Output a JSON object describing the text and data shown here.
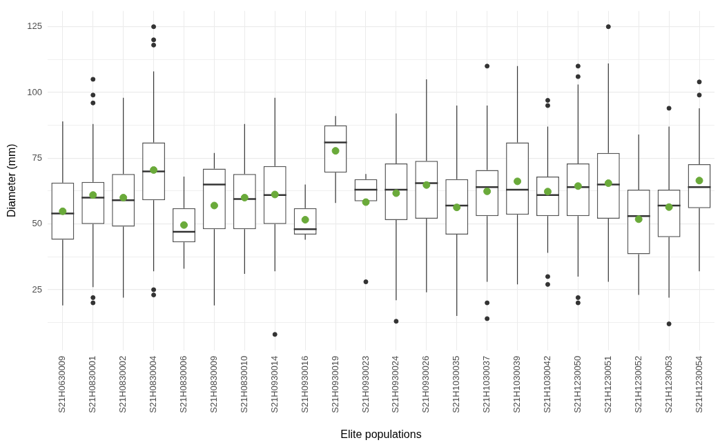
{
  "chart_data": {
    "type": "box",
    "xlabel": "Elite populations",
    "ylabel": "Diameter (mm)",
    "categories": [
      "S21H0630009",
      "S21H0830001",
      "S21H0830002",
      "S21H0830004",
      "S21H0830006",
      "S21H0830009",
      "S21H0830010",
      "S21H0930014",
      "S21H0930016",
      "S21H0930019",
      "S21H0930023",
      "S21H0930024",
      "S21H0930026",
      "S21H1030035",
      "S21H1030037",
      "S21H1030039",
      "S21H1030042",
      "S21H1230050",
      "S21H1230051",
      "S21H1230052",
      "S21H1230053",
      "S21H1230054"
    ],
    "boxes": [
      {
        "low": 19,
        "q1": 44,
        "median": 54,
        "q3": 65.7,
        "high": 89,
        "mean": 54.8
      },
      {
        "low": 26,
        "q1": 50,
        "median": 60,
        "q3": 66,
        "high": 88,
        "mean": 61,
        "outliers": [
          105,
          99,
          96,
          22,
          20
        ]
      },
      {
        "low": 22,
        "q1": 49,
        "median": 59,
        "q3": 69,
        "high": 98,
        "mean": 60
      },
      {
        "low": 32,
        "q1": 59,
        "median": 70,
        "q3": 81,
        "high": 108,
        "mean": 70.5,
        "outliers": [
          125,
          120,
          118,
          25,
          23
        ]
      },
      {
        "low": 33,
        "q1": 43,
        "median": 47,
        "q3": 56,
        "high": 68,
        "mean": 49.6
      },
      {
        "low": 19,
        "q1": 48,
        "median": 65,
        "q3": 71,
        "high": 77,
        "mean": 57
      },
      {
        "low": 31,
        "q1": 48,
        "median": 59.5,
        "q3": 69,
        "high": 88,
        "mean": 60
      },
      {
        "low": 32,
        "q1": 50,
        "median": 61,
        "q3": 72,
        "high": 98,
        "mean": 61.2,
        "outliers": [
          8
        ]
      },
      {
        "low": 44,
        "q1": 46,
        "median": 48,
        "q3": 56,
        "high": 65,
        "mean": 51.6
      },
      {
        "low": 58,
        "q1": 69.5,
        "median": 81,
        "q3": 87.5,
        "high": 91,
        "mean": 77.8
      },
      {
        "low": 58.6,
        "q1": 58.6,
        "median": 63,
        "q3": 67,
        "high": 69,
        "mean": 58.3,
        "outliers": [
          28
        ]
      },
      {
        "low": 21,
        "q1": 51.5,
        "median": 63,
        "q3": 73,
        "high": 92,
        "mean": 61.7,
        "outliers": [
          13
        ]
      },
      {
        "low": 24,
        "q1": 52,
        "median": 65.5,
        "q3": 74,
        "high": 105,
        "mean": 64.8
      },
      {
        "low": 15,
        "q1": 46,
        "median": 57,
        "q3": 67,
        "high": 95,
        "mean": 56.3
      },
      {
        "low": 28,
        "q1": 53,
        "median": 64,
        "q3": 70.5,
        "high": 95,
        "mean": 62.4,
        "outliers": [
          110,
          20,
          14
        ]
      },
      {
        "low": 27,
        "q1": 53.5,
        "median": 63,
        "q3": 81,
        "high": 110,
        "mean": 66.2
      },
      {
        "low": 39,
        "q1": 53,
        "median": 61,
        "q3": 68,
        "high": 87,
        "mean": 62.3,
        "outliers": [
          97,
          95,
          30,
          27
        ]
      },
      {
        "low": 30,
        "q1": 53,
        "median": 64,
        "q3": 73,
        "high": 103,
        "mean": 64.4,
        "outliers": [
          110,
          106,
          22,
          20
        ]
      },
      {
        "low": 28,
        "q1": 52,
        "median": 65,
        "q3": 77,
        "high": 111,
        "mean": 65.5,
        "outliers": [
          125
        ]
      },
      {
        "low": 23,
        "q1": 38.5,
        "median": 53,
        "q3": 63,
        "high": 84,
        "mean": 51.8
      },
      {
        "low": 22,
        "q1": 45,
        "median": 57,
        "q3": 63,
        "high": 87,
        "mean": 56.4,
        "outliers": [
          94,
          12
        ]
      },
      {
        "low": 32,
        "q1": 56,
        "median": 64,
        "q3": 72.7,
        "high": 94,
        "mean": 66.5,
        "outliers": [
          104,
          99
        ]
      }
    ],
    "ylim": [
      2,
      131
    ],
    "yticks": [
      {
        "value": 12.5,
        "label": null
      },
      25,
      {
        "value": 37.5,
        "label": null
      },
      50,
      {
        "value": 62.5,
        "label": null
      },
      75,
      {
        "value": 87.5,
        "label": null
      },
      100,
      {
        "value": 112.5,
        "label": null
      },
      125
    ],
    "grid": true,
    "legend": false
  }
}
